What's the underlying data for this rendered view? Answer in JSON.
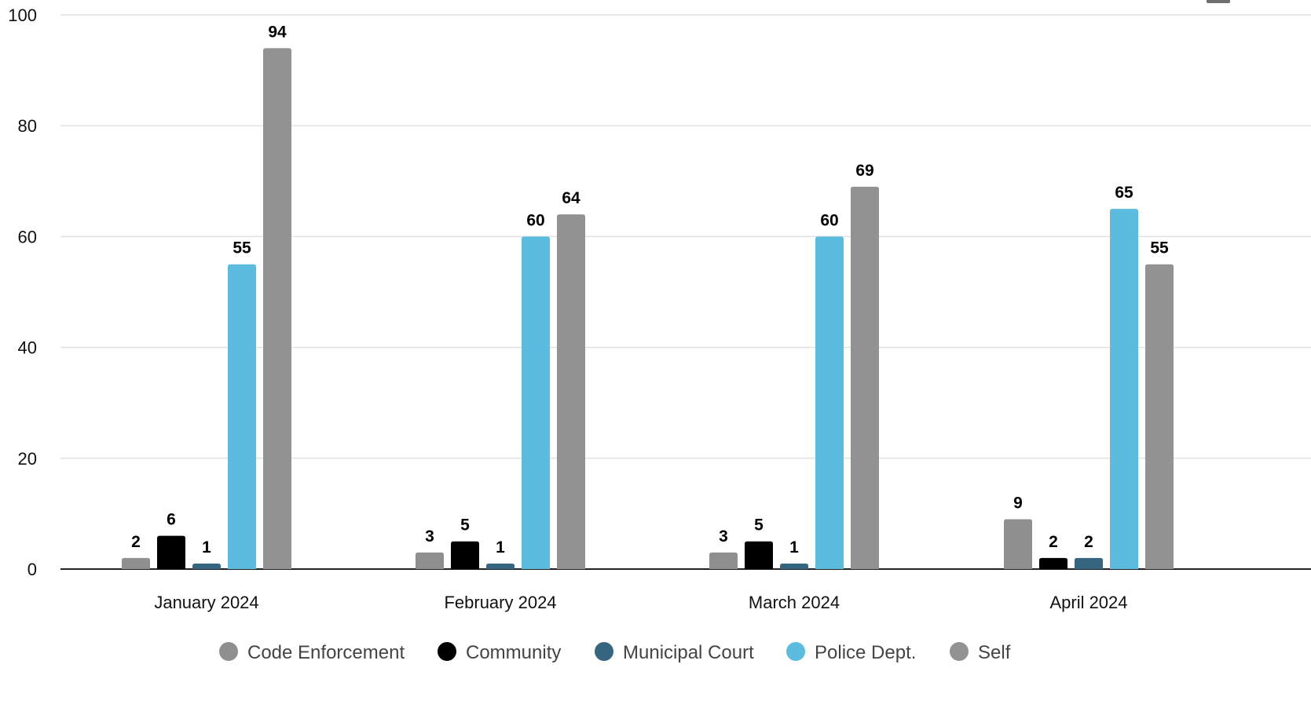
{
  "chart_data": {
    "type": "bar",
    "categories": [
      "January 2024",
      "February 2024",
      "March 2024",
      "April 2024"
    ],
    "series": [
      {
        "name": "Code Enforcement",
        "color": "#8f8f8f",
        "values": [
          2,
          3,
          3,
          9
        ]
      },
      {
        "name": "Community",
        "color": "#000000",
        "values": [
          6,
          5,
          5,
          2
        ]
      },
      {
        "name": "Municipal Court",
        "color": "#35657f",
        "values": [
          1,
          1,
          1,
          2
        ]
      },
      {
        "name": "Police Dept.",
        "color": "#5bbcdf",
        "values": [
          55,
          60,
          60,
          65
        ]
      },
      {
        "name": "Self",
        "color": "#929292",
        "values": [
          94,
          64,
          69,
          55
        ]
      }
    ],
    "ylim": [
      0,
      100
    ],
    "yticks": [
      0,
      20,
      40,
      60,
      80,
      100
    ],
    "grid": true,
    "legend_position": "bottom",
    "data_labels": true,
    "title": "",
    "xlabel": "",
    "ylabel": ""
  }
}
